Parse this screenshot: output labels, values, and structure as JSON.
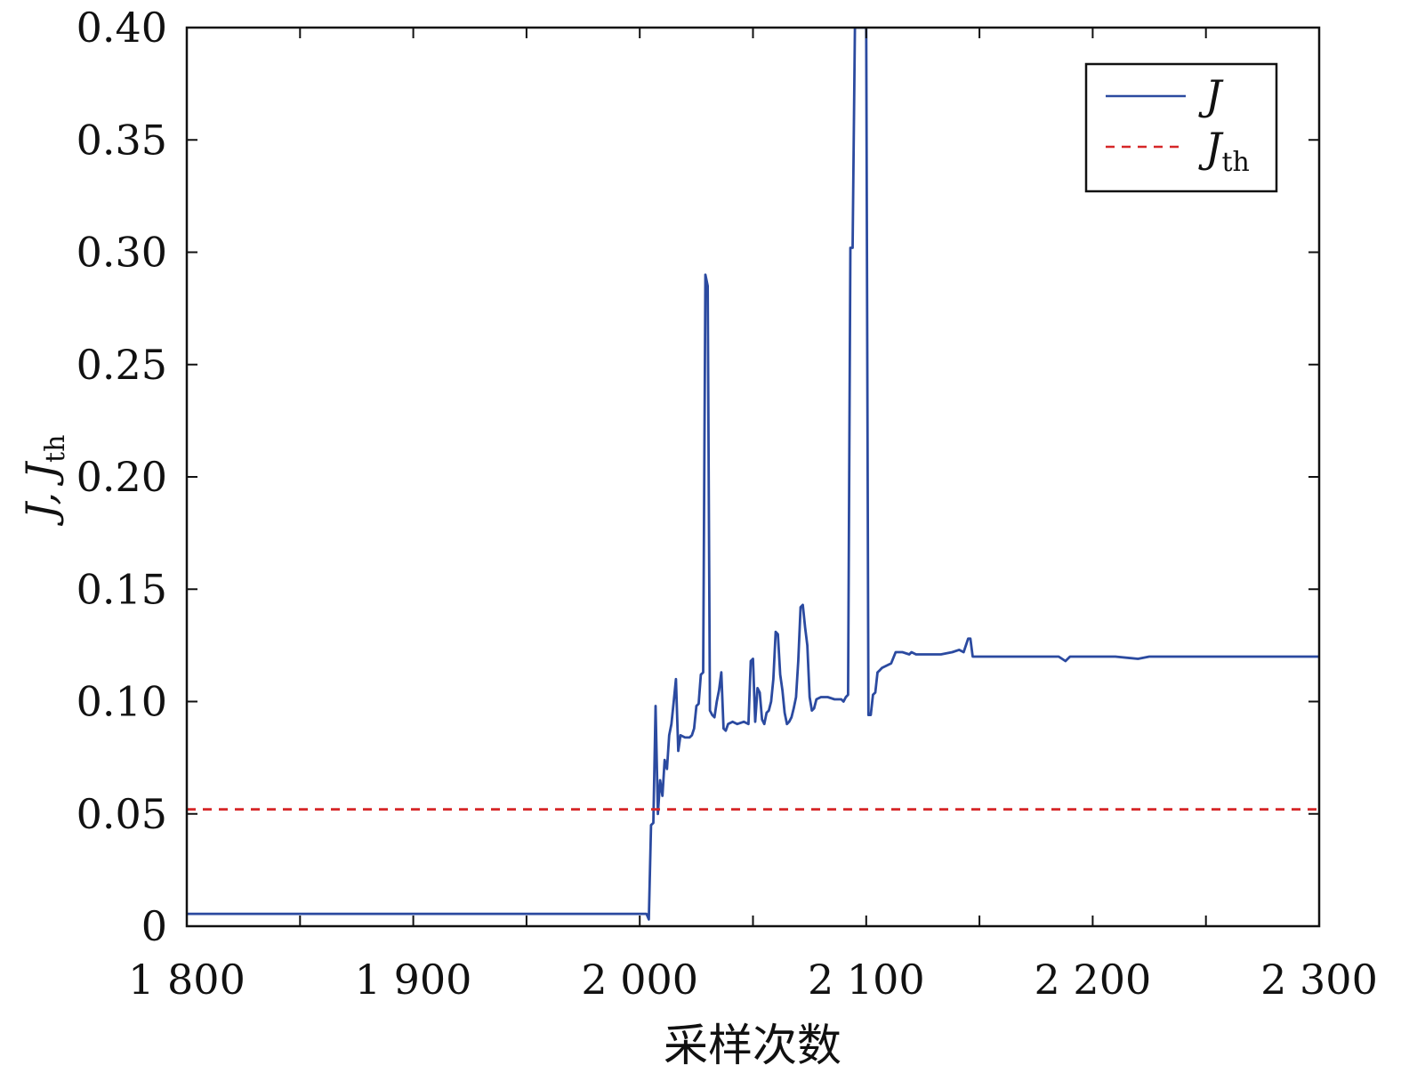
{
  "chart_data": {
    "type": "line",
    "title": "",
    "xlabel": "采样次数",
    "ylabel": {
      "main": "J, J",
      "sub": "th"
    },
    "xlim": [
      1800,
      2300
    ],
    "ylim": [
      0,
      0.4
    ],
    "x_ticks": [
      1800,
      1900,
      2000,
      2100,
      2200,
      2300
    ],
    "x_tick_labels": [
      "1 800",
      "1 900",
      "2 000",
      "2 100",
      "2 200",
      "2 300"
    ],
    "y_ticks": [
      0,
      0.05,
      0.1,
      0.15,
      0.2,
      0.25,
      0.3,
      0.35,
      0.4
    ],
    "y_tick_labels": [
      "0",
      "0.05",
      "0.10",
      "0.15",
      "0.20",
      "0.25",
      "0.30",
      "0.35",
      "0.40"
    ],
    "legend_position": "top-right",
    "grid": false,
    "series": [
      {
        "name": "J",
        "color": "#2b4aa0",
        "style": "solid",
        "points": [
          [
            1800,
            0.0055
          ],
          [
            2003,
            0.0055
          ],
          [
            2004,
            0.003
          ],
          [
            2005,
            0.045
          ],
          [
            2006,
            0.046
          ],
          [
            2007,
            0.098
          ],
          [
            2008,
            0.05
          ],
          [
            2009,
            0.065
          ],
          [
            2010,
            0.058
          ],
          [
            2011,
            0.074
          ],
          [
            2012,
            0.07
          ],
          [
            2013,
            0.085
          ],
          [
            2014,
            0.09
          ],
          [
            2015,
            0.1
          ],
          [
            2016,
            0.11
          ],
          [
            2017,
            0.078
          ],
          [
            2018,
            0.085
          ],
          [
            2020,
            0.084
          ],
          [
            2022,
            0.084
          ],
          [
            2023,
            0.085
          ],
          [
            2024,
            0.088
          ],
          [
            2025,
            0.098
          ],
          [
            2026,
            0.099
          ],
          [
            2027,
            0.112
          ],
          [
            2028,
            0.113
          ],
          [
            2029,
            0.29
          ],
          [
            2030,
            0.285
          ],
          [
            2031,
            0.096
          ],
          [
            2032,
            0.094
          ],
          [
            2033,
            0.093
          ],
          [
            2034,
            0.1
          ],
          [
            2035,
            0.105
          ],
          [
            2036,
            0.113
          ],
          [
            2037,
            0.088
          ],
          [
            2038,
            0.087
          ],
          [
            2039,
            0.09
          ],
          [
            2041,
            0.091
          ],
          [
            2043,
            0.09
          ],
          [
            2046,
            0.091
          ],
          [
            2048,
            0.09
          ],
          [
            2049,
            0.118
          ],
          [
            2050,
            0.119
          ],
          [
            2051,
            0.091
          ],
          [
            2052,
            0.106
          ],
          [
            2053,
            0.104
          ],
          [
            2054,
            0.092
          ],
          [
            2055,
            0.09
          ],
          [
            2056,
            0.095
          ],
          [
            2057,
            0.096
          ],
          [
            2058,
            0.1
          ],
          [
            2059,
            0.11
          ],
          [
            2060,
            0.131
          ],
          [
            2061,
            0.13
          ],
          [
            2062,
            0.112
          ],
          [
            2063,
            0.105
          ],
          [
            2064,
            0.095
          ],
          [
            2065,
            0.09
          ],
          [
            2066,
            0.091
          ],
          [
            2067,
            0.093
          ],
          [
            2068,
            0.097
          ],
          [
            2069,
            0.102
          ],
          [
            2070,
            0.118
          ],
          [
            2071,
            0.142
          ],
          [
            2072,
            0.143
          ],
          [
            2073,
            0.133
          ],
          [
            2074,
            0.125
          ],
          [
            2075,
            0.102
          ],
          [
            2076,
            0.096
          ],
          [
            2077,
            0.097
          ],
          [
            2078,
            0.101
          ],
          [
            2080,
            0.102
          ],
          [
            2083,
            0.102
          ],
          [
            2086,
            0.101
          ],
          [
            2089,
            0.101
          ],
          [
            2090,
            0.1
          ],
          [
            2091,
            0.102
          ],
          [
            2092,
            0.103
          ],
          [
            2093,
            0.302
          ],
          [
            2094,
            0.302
          ],
          [
            2095,
            0.4
          ],
          [
            2098,
            0.4
          ],
          [
            2100,
            0.4
          ],
          [
            2101,
            0.094
          ],
          [
            2102,
            0.094
          ],
          [
            2103,
            0.103
          ],
          [
            2104,
            0.104
          ],
          [
            2105,
            0.113
          ],
          [
            2106,
            0.114
          ],
          [
            2107,
            0.115
          ],
          [
            2109,
            0.116
          ],
          [
            2111,
            0.117
          ],
          [
            2113,
            0.122
          ],
          [
            2116,
            0.122
          ],
          [
            2119,
            0.121
          ],
          [
            2120,
            0.122
          ],
          [
            2122,
            0.121
          ],
          [
            2128,
            0.121
          ],
          [
            2133,
            0.121
          ],
          [
            2138,
            0.122
          ],
          [
            2141,
            0.123
          ],
          [
            2143,
            0.122
          ],
          [
            2145,
            0.128
          ],
          [
            2146,
            0.128
          ],
          [
            2147,
            0.12
          ],
          [
            2155,
            0.12
          ],
          [
            2165,
            0.12
          ],
          [
            2175,
            0.12
          ],
          [
            2185,
            0.12
          ],
          [
            2188,
            0.118
          ],
          [
            2190,
            0.12
          ],
          [
            2200,
            0.12
          ],
          [
            2210,
            0.12
          ],
          [
            2220,
            0.119
          ],
          [
            2225,
            0.12
          ],
          [
            2240,
            0.12
          ],
          [
            2260,
            0.12
          ],
          [
            2280,
            0.12
          ],
          [
            2300,
            0.12
          ]
        ]
      },
      {
        "name": "J",
        "subscript": "th",
        "color": "#d62728",
        "style": "dashed",
        "points": [
          [
            1800,
            0.052
          ],
          [
            2300,
            0.052
          ]
        ]
      }
    ]
  }
}
